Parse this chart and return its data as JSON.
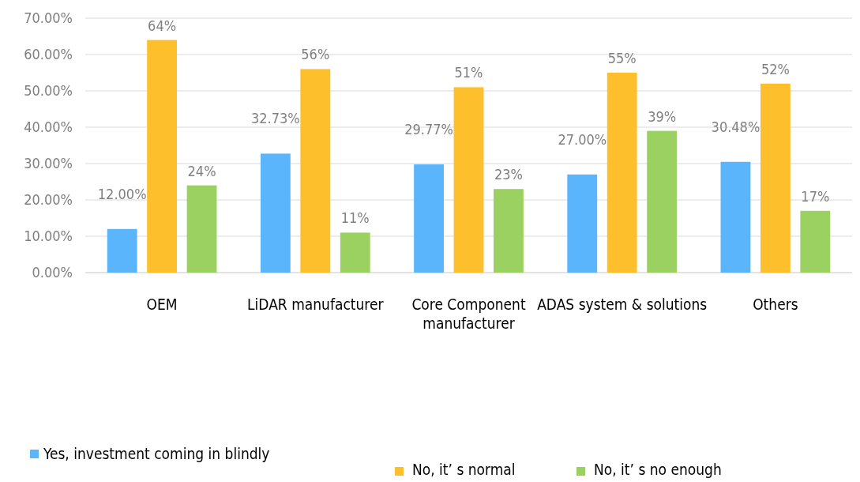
{
  "chart_data": {
    "type": "bar",
    "categories": [
      "OEM",
      "LiDAR manufacturer",
      "Core Component manufacturer",
      "ADAS system & solutions",
      "Others"
    ],
    "series": [
      {
        "name": "Yes, investment coming in blindly",
        "color": "#5ab5fc",
        "values": [
          12,
          32.73,
          29.77,
          27,
          30.48
        ],
        "value_labels": [
          "12.00%",
          "32.73%",
          "29.77%",
          "27.00%",
          "30.48%"
        ]
      },
      {
        "name": "No, it’ s normal",
        "color": "#fdc02c",
        "values": [
          64,
          56,
          51,
          55,
          52
        ],
        "value_labels": [
          "64%",
          "56%",
          "51%",
          "55%",
          "52%"
        ]
      },
      {
        "name": "No, it’ s no enough",
        "color": "#9bd160",
        "values": [
          24,
          11,
          23,
          39,
          17
        ],
        "value_labels": [
          "24%",
          "11%",
          "23%",
          "39%",
          "17%"
        ]
      }
    ],
    "ylim": [
      0,
      70
    ],
    "yticks": [
      {
        "value": 0,
        "label": "0.00%"
      },
      {
        "value": 10,
        "label": "10.00%"
      },
      {
        "value": 20,
        "label": "20.00%"
      },
      {
        "value": 30,
        "label": "30.00%"
      },
      {
        "value": 40,
        "label": "40.00%"
      },
      {
        "value": 50,
        "label": "50.00%"
      },
      {
        "value": 60,
        "label": "60.00%"
      },
      {
        "value": 70,
        "label": "70.00%"
      }
    ],
    "grid": "y",
    "legend": "bottom"
  }
}
